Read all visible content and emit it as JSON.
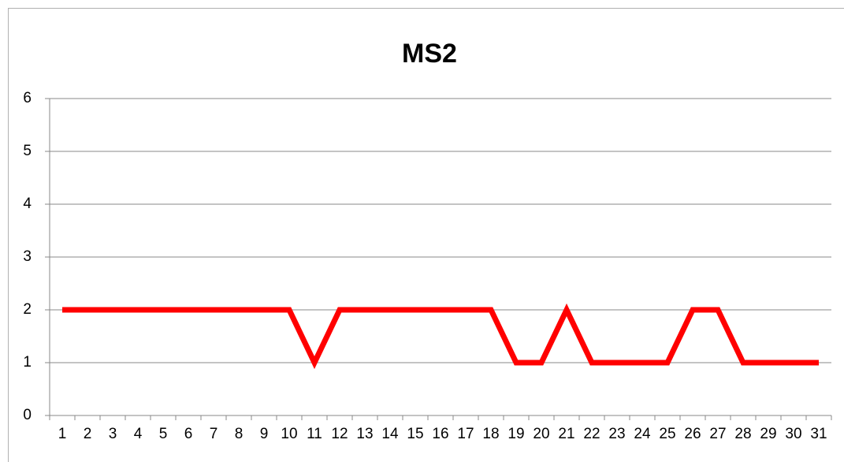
{
  "chart_data": {
    "type": "line",
    "title": "MS2",
    "categories": [
      "1",
      "2",
      "3",
      "4",
      "5",
      "6",
      "7",
      "8",
      "9",
      "10",
      "11",
      "12",
      "13",
      "14",
      "15",
      "16",
      "17",
      "18",
      "19",
      "20",
      "21",
      "22",
      "23",
      "24",
      "25",
      "26",
      "27",
      "28",
      "29",
      "30",
      "31"
    ],
    "values": [
      2,
      2,
      2,
      2,
      2,
      2,
      2,
      2,
      2,
      2,
      1,
      2,
      2,
      2,
      2,
      2,
      2,
      2,
      1,
      1,
      2,
      1,
      1,
      1,
      1,
      2,
      2,
      1,
      1,
      1,
      1
    ],
    "color": "#ff0000",
    "ylim": [
      0,
      6
    ],
    "yticks": [
      0,
      1,
      2,
      3,
      4,
      5,
      6
    ],
    "grid": true
  }
}
